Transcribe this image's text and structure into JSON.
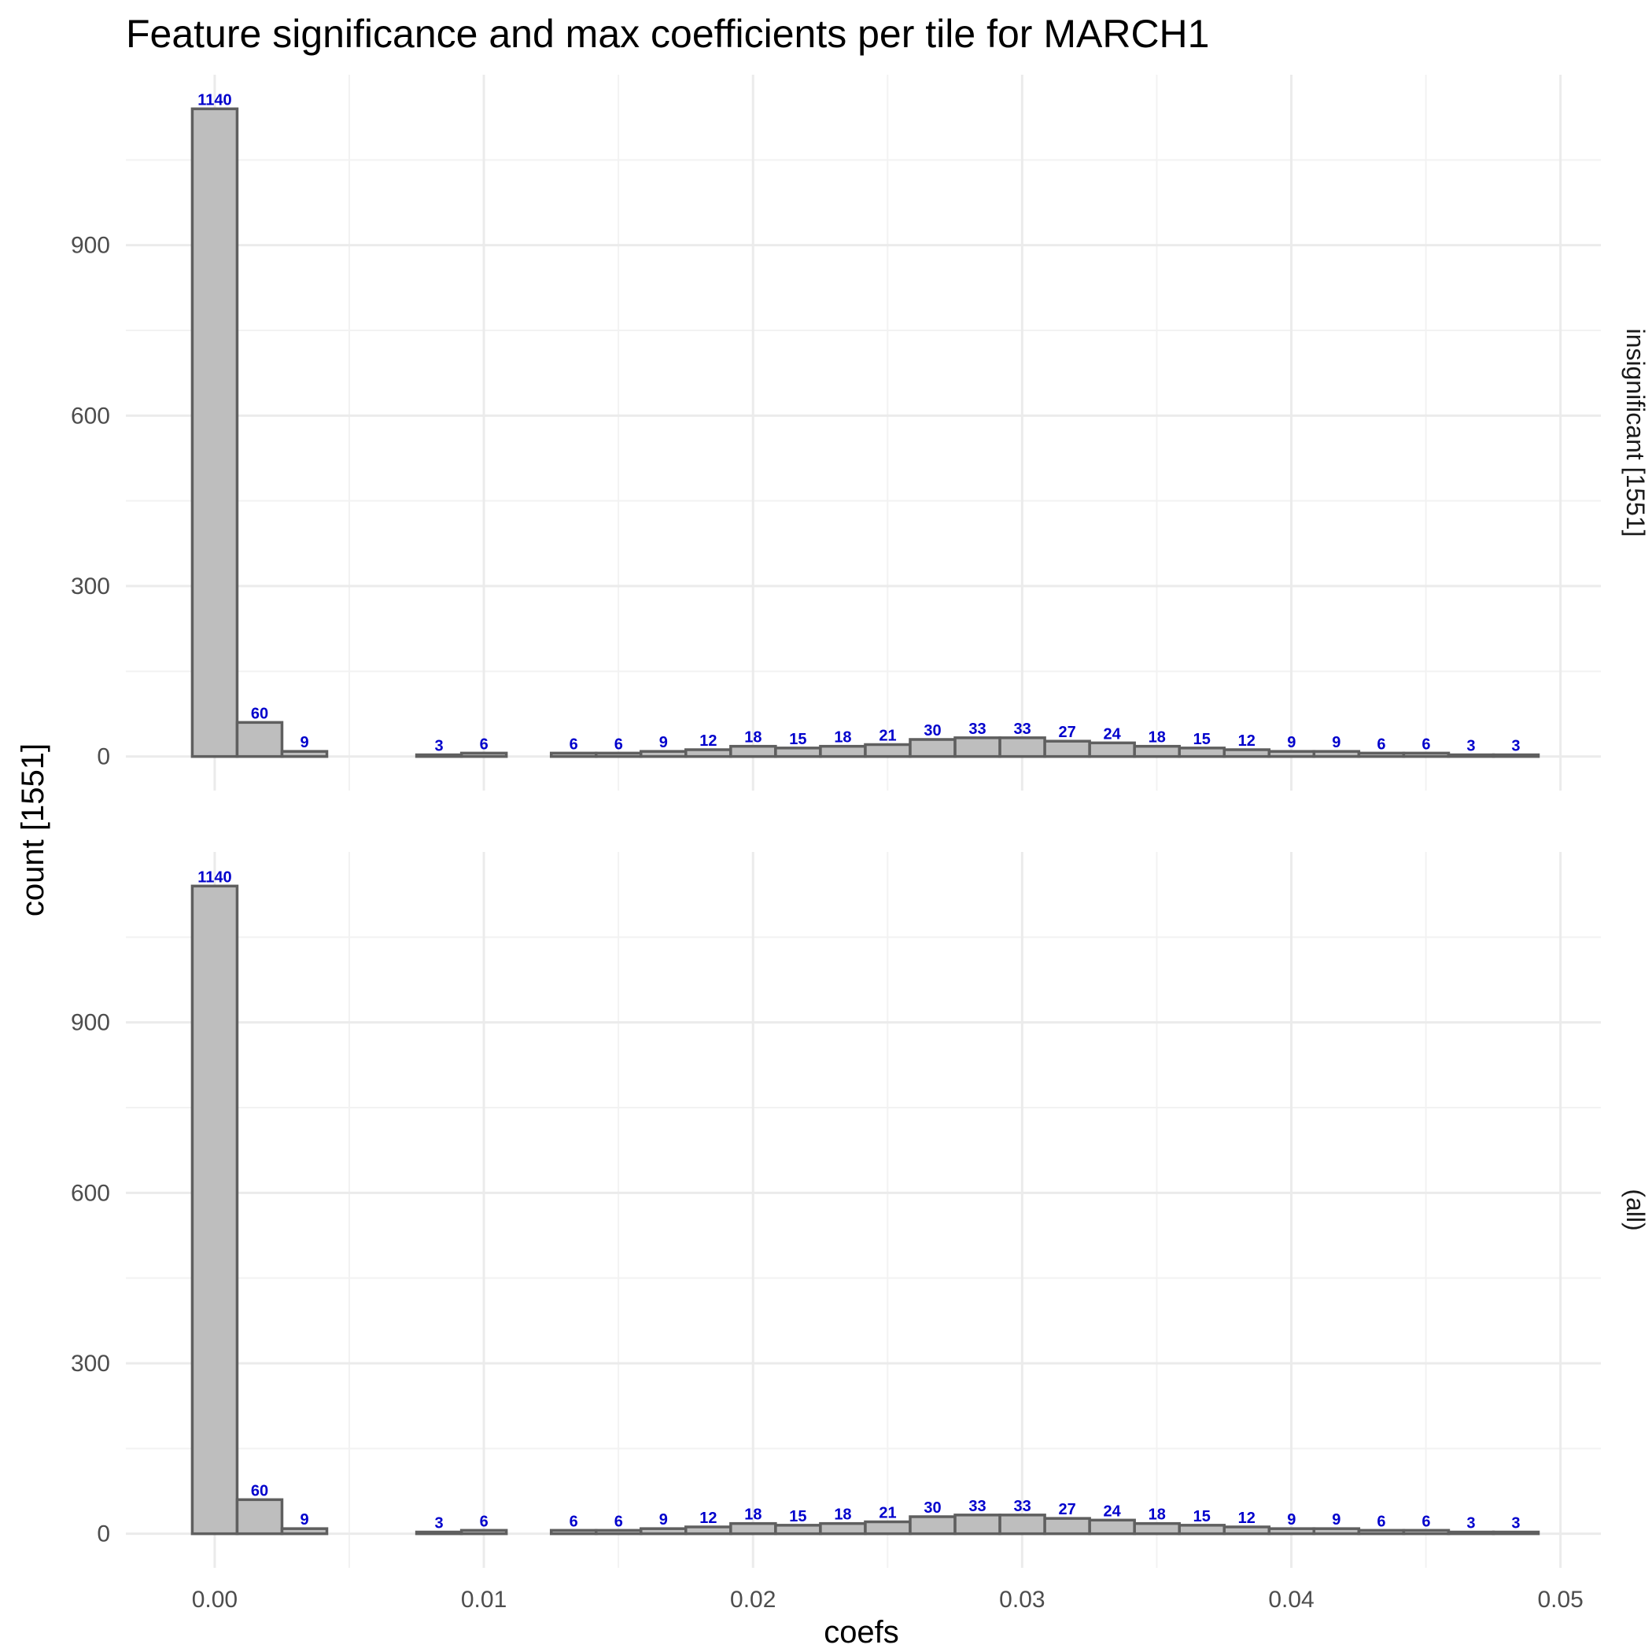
{
  "chart_data": {
    "type": "bar",
    "title": "Feature significance and max coefficients per tile for MARCH1",
    "xlabel": "coefs",
    "ylabel": "count [1551]",
    "xlim": [
      -0.0033,
      0.0515
    ],
    "ylim": [
      -60,
      1200
    ],
    "x_ticks": [
      0.0,
      0.01,
      0.02,
      0.03,
      0.04,
      0.05
    ],
    "x_tick_labels": [
      "0.00",
      "0.01",
      "0.02",
      "0.03",
      "0.04",
      "0.05"
    ],
    "y_ticks": [
      0,
      300,
      600,
      900
    ],
    "y_tick_labels": [
      "0",
      "300",
      "600",
      "900"
    ],
    "grid": true,
    "bin_width": 0.001667,
    "bin_start": -0.000833,
    "panels": [
      {
        "label": "insignificant [1551]",
        "counts": [
          1140,
          60,
          9,
          0,
          0,
          3,
          6,
          0,
          6,
          6,
          9,
          12,
          18,
          15,
          18,
          21,
          30,
          33,
          33,
          27,
          24,
          18,
          15,
          12,
          9,
          9,
          6,
          6,
          3,
          3
        ]
      },
      {
        "label": "(all)",
        "counts": [
          1140,
          60,
          9,
          0,
          0,
          3,
          6,
          0,
          6,
          6,
          9,
          12,
          18,
          15,
          18,
          21,
          30,
          33,
          33,
          27,
          24,
          18,
          15,
          12,
          9,
          9,
          6,
          6,
          3,
          3
        ]
      }
    ],
    "colors": {
      "bar_fill": "#bebebe",
      "bar_outline": "#5f5f5f",
      "label": "#0000cc"
    }
  }
}
